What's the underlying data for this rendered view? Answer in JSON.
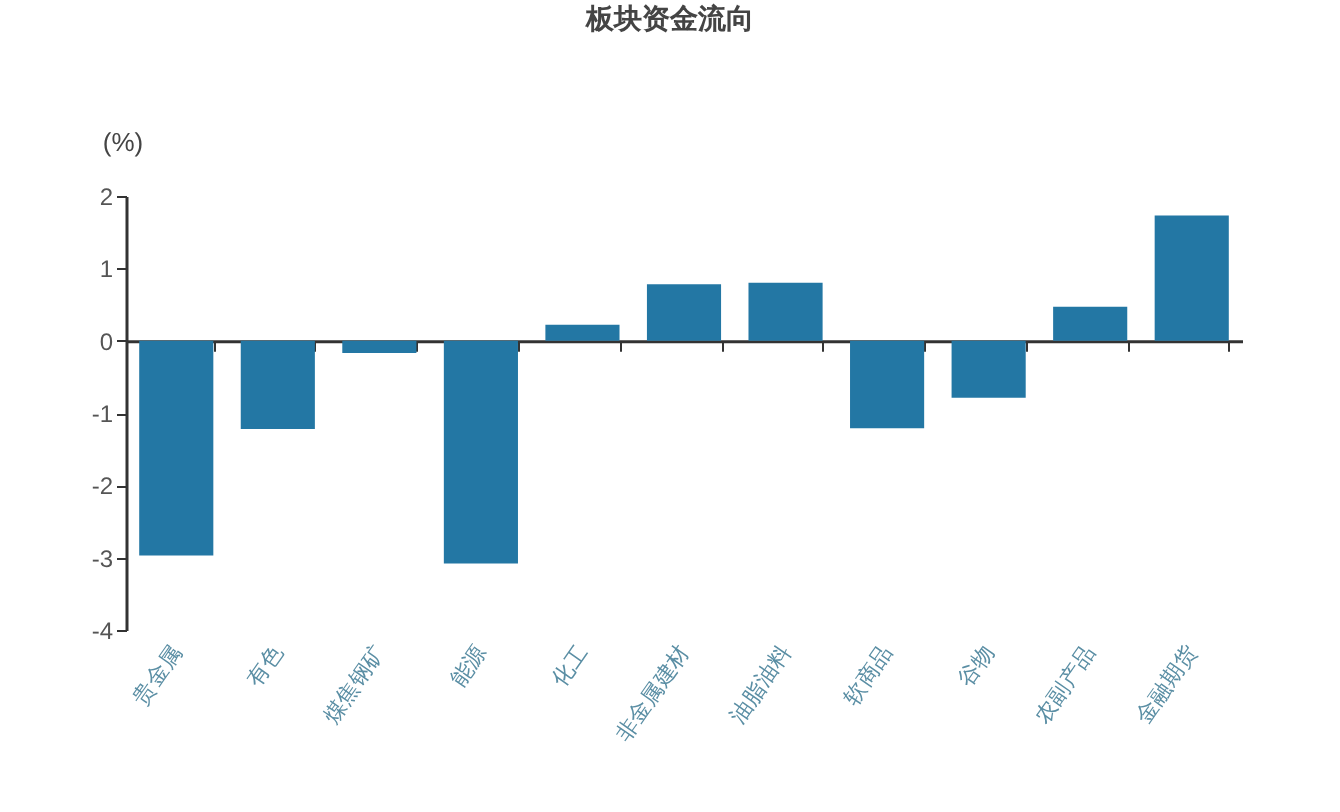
{
  "chart_data": {
    "type": "bar",
    "title": "板块资金流向",
    "ylabel": "(%)",
    "categories": [
      "贵金属",
      "有色",
      "煤焦钢矿",
      "能源",
      "化工",
      "非金属建材",
      "油脂油料",
      "软商品",
      "谷物",
      "农副产品",
      "金融期货"
    ],
    "values": [
      -2.97,
      -1.22,
      -0.17,
      -3.08,
      0.22,
      0.78,
      0.8,
      -1.21,
      -0.79,
      0.47,
      1.73
    ],
    "color": "#2377a4",
    "ylim": [
      -4,
      2
    ],
    "yticks": [
      -4,
      -3,
      -2,
      -1,
      0,
      1,
      2
    ]
  }
}
